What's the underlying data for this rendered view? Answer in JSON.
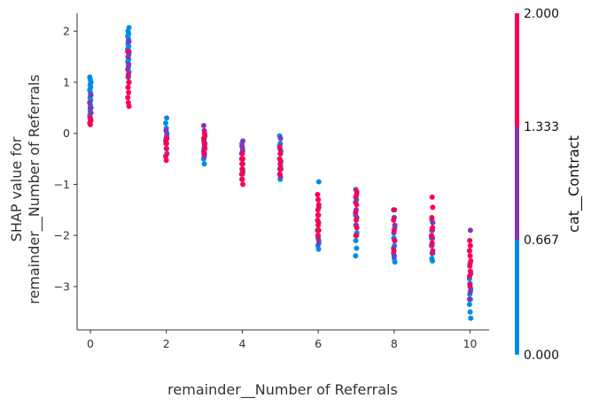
{
  "chart_data": {
    "type": "scatter",
    "title": "",
    "xlabel": "remainder__Number of Referrals",
    "ylabel_lines": [
      "SHAP value for",
      "remainder__Number of Referrals"
    ],
    "xlim": [
      -0.35,
      10.5
    ],
    "ylim": [
      -3.85,
      2.35
    ],
    "xticks": [
      0,
      2,
      4,
      6,
      8,
      10
    ],
    "yticks": [
      2,
      1,
      0,
      -1,
      -2,
      -3
    ],
    "xtick_labels": [
      "0",
      "2",
      "4",
      "6",
      "8",
      "10"
    ],
    "ytick_labels": [
      "2",
      "1",
      "0",
      "−1",
      "−2",
      "−3"
    ],
    "grid": false,
    "colorbar": {
      "label": "cat__Contract",
      "range": [
        0,
        2
      ],
      "tick_labels": [
        "2.000",
        "1.333",
        "0.667",
        "0.000"
      ],
      "colors": [
        "#ff0052",
        "#8c33b3",
        "#008bea"
      ]
    },
    "series": [
      {
        "x": 0,
        "color_value": 0,
        "y": [
          1.1,
          1.05,
          1.0,
          0.95,
          0.9,
          0.85,
          0.8,
          0.75,
          0.7,
          0.65,
          0.6,
          0.55,
          0.5,
          0.45,
          0.4,
          0.35,
          0.3,
          0.25
        ]
      },
      {
        "x": 0,
        "color_value": 1,
        "y": [
          0.75,
          0.6,
          0.5,
          0.4,
          0.3,
          0.25
        ]
      },
      {
        "x": 0,
        "color_value": 2,
        "y": [
          0.3,
          0.25,
          0.2,
          0.17
        ]
      },
      {
        "x": 1,
        "color_value": 0,
        "y": [
          2.07,
          2.0,
          1.95,
          1.9,
          1.85,
          1.8,
          1.75,
          1.7,
          1.65,
          1.6,
          1.55,
          1.5,
          1.45,
          1.4,
          1.3,
          1.2,
          1.1,
          1.0
        ]
      },
      {
        "x": 1,
        "color_value": 1,
        "y": [
          1.8,
          1.6,
          1.5,
          1.35,
          1.25,
          1.1,
          1.0,
          0.9
        ]
      },
      {
        "x": 1,
        "color_value": 2,
        "y": [
          1.6,
          1.15,
          1.0,
          0.9,
          0.8,
          0.7,
          0.6,
          0.53
        ]
      },
      {
        "x": 2,
        "color_value": 0,
        "y": [
          0.3,
          0.2,
          0.1,
          0.0,
          -0.1,
          -0.2
        ]
      },
      {
        "x": 2,
        "color_value": 1,
        "y": [
          0.05,
          -0.05,
          -0.15,
          -0.3,
          -0.4
        ]
      },
      {
        "x": 2,
        "color_value": 2,
        "y": [
          -0.1,
          -0.2,
          -0.3,
          -0.45,
          -0.53
        ]
      },
      {
        "x": 3,
        "color_value": 0,
        "y": [
          -0.1,
          -0.2,
          -0.3,
          -0.4,
          -0.5,
          -0.6
        ]
      },
      {
        "x": 3,
        "color_value": 1,
        "y": [
          0.15,
          0.05,
          -0.05,
          -0.15,
          -0.25,
          -0.35,
          -0.45
        ]
      },
      {
        "x": 3,
        "color_value": 2,
        "y": [
          0.0,
          -0.1,
          -0.2,
          -0.3,
          -0.4
        ]
      },
      {
        "x": 4,
        "color_value": 0,
        "y": [
          -0.2,
          -0.3,
          -0.4,
          -0.5,
          -0.6,
          -0.7,
          -0.8
        ]
      },
      {
        "x": 4,
        "color_value": 1,
        "y": [
          -0.15,
          -0.25,
          -0.35,
          -0.5,
          -0.6,
          -0.75,
          -0.9
        ]
      },
      {
        "x": 4,
        "color_value": 2,
        "y": [
          -0.4,
          -0.5,
          -0.6,
          -0.7,
          -0.8,
          -0.9,
          -1.0
        ]
      },
      {
        "x": 5,
        "color_value": 0,
        "y": [
          -0.05,
          -0.2,
          -0.35,
          -0.5,
          -0.65,
          -0.8,
          -0.9
        ]
      },
      {
        "x": 5,
        "color_value": 1,
        "y": [
          -0.1,
          -0.25,
          -0.4,
          -0.55,
          -0.7,
          -0.85
        ]
      },
      {
        "x": 5,
        "color_value": 2,
        "y": [
          -0.3,
          -0.4,
          -0.5,
          -0.6,
          -0.7,
          -0.8
        ]
      },
      {
        "x": 6,
        "color_value": 0,
        "y": [
          -0.95,
          -1.6,
          -1.75,
          -1.9,
          -2.0,
          -2.1,
          -2.2,
          -2.27
        ]
      },
      {
        "x": 6,
        "color_value": 1,
        "y": [
          -1.3,
          -1.45,
          -1.6,
          -1.75,
          -1.9,
          -2.05,
          -2.15
        ]
      },
      {
        "x": 6,
        "color_value": 2,
        "y": [
          -1.2,
          -1.3,
          -1.4,
          -1.5,
          -1.6,
          -1.7,
          -1.8,
          -1.9,
          -2.0
        ]
      },
      {
        "x": 7,
        "color_value": 0,
        "y": [
          -1.3,
          -1.6,
          -1.8,
          -1.95,
          -2.1,
          -2.25,
          -2.4
        ]
      },
      {
        "x": 7,
        "color_value": 1,
        "y": [
          -1.1,
          -1.2,
          -1.35,
          -1.5,
          -1.65,
          -1.8,
          -2.0
        ]
      },
      {
        "x": 7,
        "color_value": 2,
        "y": [
          -1.15,
          -1.25,
          -1.4,
          -1.55,
          -1.7,
          -1.85,
          -2.0
        ]
      },
      {
        "x": 8,
        "color_value": 0,
        "y": [
          -1.65,
          -1.85,
          -2.05,
          -2.2,
          -2.35,
          -2.45,
          -2.52
        ]
      },
      {
        "x": 8,
        "color_value": 1,
        "y": [
          -1.5,
          -1.65,
          -1.8,
          -1.95,
          -2.1,
          -2.25,
          -2.4
        ]
      },
      {
        "x": 8,
        "color_value": 2,
        "y": [
          -1.5,
          -1.7,
          -1.9,
          -2.1,
          -2.3
        ]
      },
      {
        "x": 9,
        "color_value": 0,
        "y": [
          -1.7,
          -1.9,
          -2.05,
          -2.2,
          -2.35,
          -2.45,
          -2.5
        ]
      },
      {
        "x": 9,
        "color_value": 1,
        "y": [
          -1.75,
          -1.9,
          -2.05,
          -2.2,
          -2.35
        ]
      },
      {
        "x": 9,
        "color_value": 2,
        "y": [
          -1.25,
          -1.45,
          -1.65,
          -1.85,
          -2.0,
          -2.15,
          -2.3
        ]
      },
      {
        "x": 10,
        "color_value": 0,
        "y": [
          -2.85,
          -2.95,
          -3.05,
          -3.15,
          -3.25,
          -3.35,
          -3.5,
          -3.62
        ]
      },
      {
        "x": 10,
        "color_value": 1,
        "y": [
          -1.9,
          -2.3,
          -2.55,
          -2.75,
          -2.95,
          -3.1,
          -3.25
        ]
      },
      {
        "x": 10,
        "color_value": 2,
        "y": [
          -2.1,
          -2.2,
          -2.3,
          -2.4,
          -2.5,
          -2.6,
          -2.7,
          -2.8,
          -3.0
        ]
      }
    ]
  }
}
